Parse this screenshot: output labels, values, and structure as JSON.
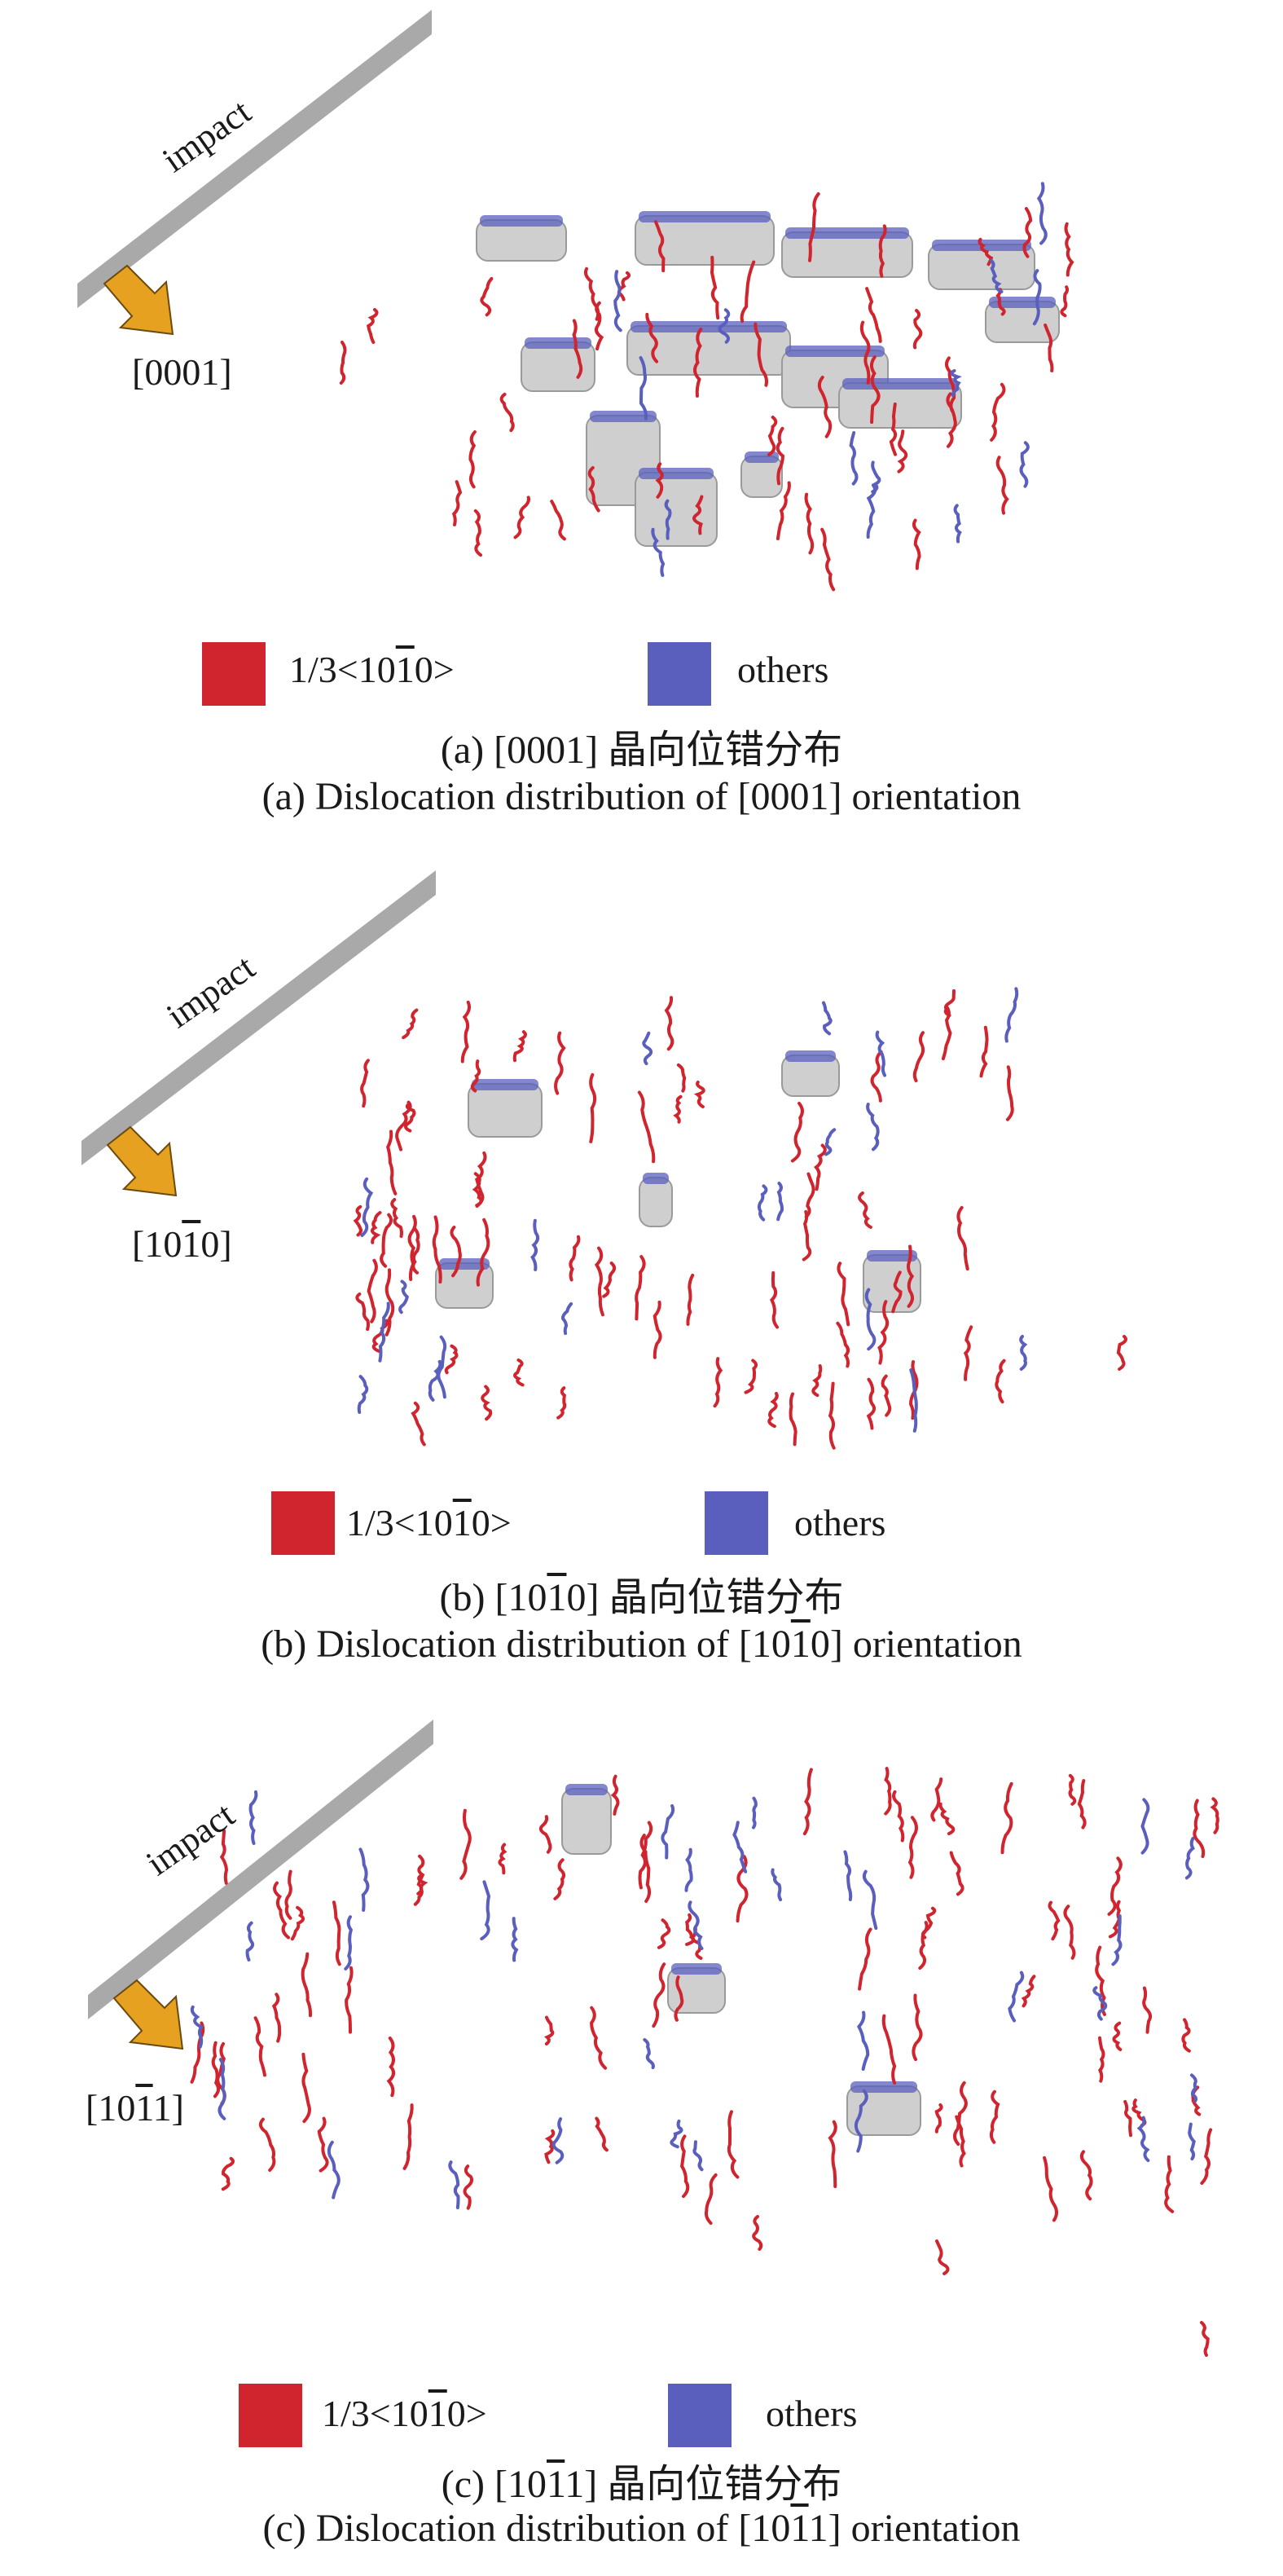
{
  "colors": {
    "red": "#d0252e",
    "blue": "#5a5fbd",
    "gray_bar": "#a9a9a9",
    "arrow": "#e5a11f",
    "void_gray": "#cfcfcf"
  },
  "panels": [
    {
      "impact_label": "impact",
      "direction_parts": [
        "[0001]"
      ],
      "direction_bar_index": -1,
      "legend_red_parts": [
        "1/3<10",
        "1",
        "0>"
      ],
      "legend_others": "others",
      "caption_cn_parts": [
        "(a) [0001] 晶向位错分布"
      ],
      "caption_en_parts": [
        "(a) Dislocation distribution of [0001] orientation"
      ]
    },
    {
      "impact_label": "impact",
      "direction_parts": [
        "[10",
        "1",
        "0]"
      ],
      "direction_bar_index": 1,
      "legend_red_parts": [
        "1/3<10",
        "1",
        "0>"
      ],
      "legend_others": "others",
      "caption_cn_parts": [
        "(b) [10",
        "1",
        "0] 晶向位错分布"
      ],
      "caption_en_parts": [
        "(b) Dislocation distribution of [10",
        "1",
        "0] orientation"
      ]
    },
    {
      "impact_label": "impact",
      "direction_parts": [
        "[10",
        "1",
        "1]"
      ],
      "direction_bar_index": 1,
      "legend_red_parts": [
        "1/3<10",
        "1",
        "0>"
      ],
      "legend_others": "others",
      "caption_cn_parts": [
        "(c) [10",
        "1",
        "1] 晶向位错分布"
      ],
      "caption_en_parts": [
        "(c) Dislocation distribution of [10",
        "1",
        "1] orientation"
      ]
    }
  ],
  "icons": {
    "impact_arrow": "down-right-arrow-icon",
    "legend_red": "red-square-icon",
    "legend_blue": "blue-square-icon"
  }
}
